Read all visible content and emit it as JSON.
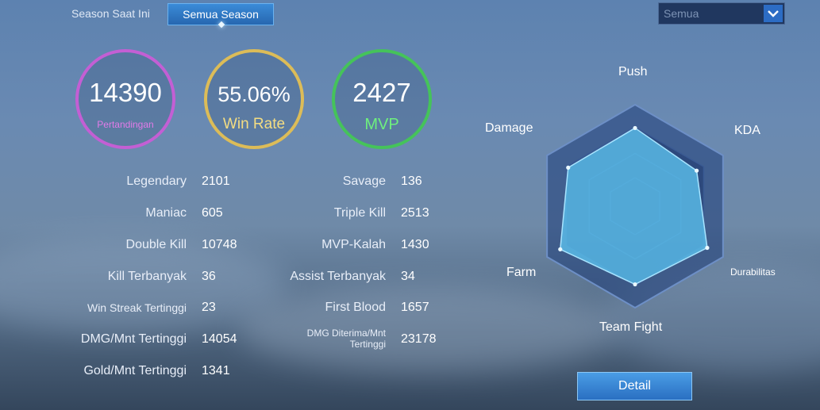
{
  "tabs": {
    "current_season": "Season Saat Ini",
    "all_season": "Semua Season"
  },
  "filter": {
    "selected": "Semua"
  },
  "summary": {
    "matches": {
      "value": "14390",
      "label": "Pertandingan"
    },
    "win_rate": {
      "value": "55.06%",
      "label": "Win Rate"
    },
    "mvp": {
      "value": "2427",
      "label": "MVP"
    }
  },
  "stats_left": [
    {
      "label": "Legendary",
      "value": "2101"
    },
    {
      "label": "Maniac",
      "value": "605"
    },
    {
      "label": "Double Kill",
      "value": "10748"
    },
    {
      "label": "Kill Terbanyak",
      "value": "36"
    },
    {
      "label": "Win Streak Tertinggi",
      "value": "23"
    },
    {
      "label": "DMG/Mnt Tertinggi",
      "value": "14054"
    },
    {
      "label": "Gold/Mnt Tertinggi",
      "value": "1341"
    }
  ],
  "stats_right": [
    {
      "label": "Savage",
      "value": "136"
    },
    {
      "label": "Triple Kill",
      "value": "2513"
    },
    {
      "label": "MVP-Kalah",
      "value": "1430"
    },
    {
      "label": "Assist Terbanyak",
      "value": "34"
    },
    {
      "label": "First Blood",
      "value": "1657"
    },
    {
      "label": "DMG Diterima/Mnt Tertinggi",
      "value": "23178"
    }
  ],
  "radar": {
    "axes": [
      "Push",
      "KDA",
      "Durabilitas",
      "Team Fight",
      "Farm",
      "Damage"
    ],
    "values": [
      0.77,
      0.7,
      0.82,
      0.77,
      0.85,
      0.76
    ],
    "fill_color": "#5cc3ef",
    "ring_color": "#3a5a93"
  },
  "detail_button": "Detail",
  "icons": {
    "dropdown": "chevron-down-icon"
  }
}
